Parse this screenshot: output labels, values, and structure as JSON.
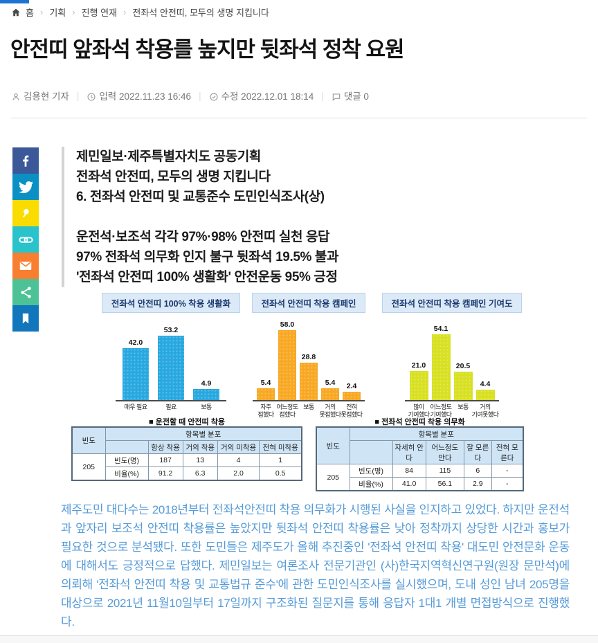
{
  "top_bar": {
    "color": "#1e73d2"
  },
  "breadcrumb": {
    "items": [
      "홈",
      "기획",
      "진행 연재",
      "전좌석 안전띠, 모두의 생명 지킵니다"
    ],
    "separator": "›"
  },
  "header": {
    "title": "안전띠 앞좌석 착용를 높지만 뒷좌석 정착 요원"
  },
  "byline": {
    "author": "김용현 기자",
    "published": "입력 2022.11.23 16:46",
    "modified": "수정 2022.12.01 18:14",
    "comments": "댓글 0"
  },
  "social": {
    "items": [
      {
        "icon": "facebook-icon",
        "label": "페이스북 공유",
        "color": "#3b5998"
      },
      {
        "icon": "twitter-icon",
        "label": "트위터 공유",
        "color": "#0b90c4"
      },
      {
        "icon": "kakaostory-icon",
        "label": "카카오스토리 공유",
        "color": "#fadc00"
      },
      {
        "icon": "link-icon",
        "label": "URL 복사",
        "color": "#2bc3cb"
      },
      {
        "icon": "email-icon",
        "label": "이메일 보내기",
        "color": "#f87e30"
      },
      {
        "icon": "share-icon",
        "label": "공유하기",
        "color": "#4ec297"
      },
      {
        "icon": "bookmark-icon",
        "label": "북마크",
        "color": "#1176bb"
      }
    ]
  },
  "summary": {
    "stanza1": [
      "제민일보·제주특별자치도 공동기획",
      "전좌석 안전띠, 모두의 생명 지킵니다",
      "6. 전좌석 안전띠 및 교통준수 도민인식조사(상)"
    ],
    "stanza2": [
      "운전석·보조석 각각 97%·98% 안전띠 실천 응답",
      "97% 전좌석 의무화 인지 불구 뒷좌석 19.5% 불과",
      "'전좌석 안전띠 100% 생활화' 안전운동 95% 긍정"
    ]
  },
  "chart_data": [
    {
      "type": "bar",
      "title": "전좌석 안전띠 100% 착용 생활화",
      "categories": [
        "매우 필요",
        "필요",
        "보통"
      ],
      "values": [
        42.0,
        53.2,
        4.9
      ],
      "bar_color": "#29a8e0",
      "ylim": [
        0,
        60
      ],
      "data_labels": true,
      "grid": false,
      "legend": "none"
    },
    {
      "type": "bar",
      "title": "전좌석 안전띠 착용 캠페인",
      "categories": [
        "자주\n접했다",
        "어느정도\n접했다",
        "보통",
        "거의\n못접했다",
        "전혀\n못접했다"
      ],
      "values": [
        5.4,
        58.0,
        28.8,
        5.4,
        2.4
      ],
      "bar_color": "#f8a823",
      "ylim": [
        0,
        60
      ],
      "data_labels": true,
      "grid": false,
      "legend": "none"
    },
    {
      "type": "bar",
      "title": "전좌석 안전띠 착용 캠페인 기여도",
      "categories": [
        "많이\n기여했다",
        "어느정도\n기여했다",
        "보통",
        "거의\n기여못했다"
      ],
      "values": [
        21.0,
        54.1,
        20.5,
        4.4
      ],
      "bar_color": "#d8e022",
      "ylim": [
        0,
        60
      ],
      "data_labels": true,
      "grid": false,
      "legend": "none"
    },
    {
      "type": "table",
      "title": "■ 운전할 때 안전띠 착용",
      "freq_header": "빈도",
      "dist_header": "항목별 분포",
      "columns": [
        "항상 착용",
        "거의 착용",
        "거의 미착용",
        "전혀 미착용"
      ],
      "total": "205",
      "rows": [
        {
          "label": "빈도(명)",
          "values": [
            "187",
            "13",
            "4",
            "1"
          ]
        },
        {
          "label": "비율(%)",
          "values": [
            "91.2",
            "6.3",
            "2.0",
            "0.5"
          ]
        }
      ]
    },
    {
      "type": "table",
      "title": "■ 전좌석 안전띠 착용 의무화",
      "freq_header": "빈도",
      "dist_header": "항목별 분포",
      "columns": [
        "자세히 안다",
        "어느정도 안다",
        "잘 모른다",
        "전혀 모른다"
      ],
      "total": "205",
      "rows": [
        {
          "label": "빈도(명)",
          "values": [
            "84",
            "115",
            "6",
            "-"
          ]
        },
        {
          "label": "비율(%)",
          "values": [
            "41.0",
            "56.1",
            "2.9",
            "-"
          ]
        }
      ]
    }
  ],
  "body": {
    "paragraph": "제주도민 대다수는 2018년부터 전좌석안전띠 착용 의무화가 시행된 사실을 인지하고 있었다. 하지만 운전석과 앞자리 보조석 안전띠 착용률은 높았지만 뒷좌석 안전띠 착용률은 낮아 정착까지 상당한 시간과 홍보가 필요한 것으로 분석됐다. 또한 도민들은 제주도가 올해 추진중인 '전좌석 안전띠 착용' 대도민 안전문화 운동에 대해서도 긍정적으로 답했다. 제민일보는 여론조사 전문기관인 (사)한국지역혁신연구원(원장 문만석)에 의뢰해 '전좌석 안전띠 착용 및 교통법규 준수'에 관한 도민인식조사를 실시했으며, 도내 성인 남녀 205명을 대상으로 2021년 11월10일부터 17일까지 구조화된 질문지를 통해 응답자 1대1 개별 면접방식으로 진행했다.",
    "text_color": "#569bd8"
  }
}
